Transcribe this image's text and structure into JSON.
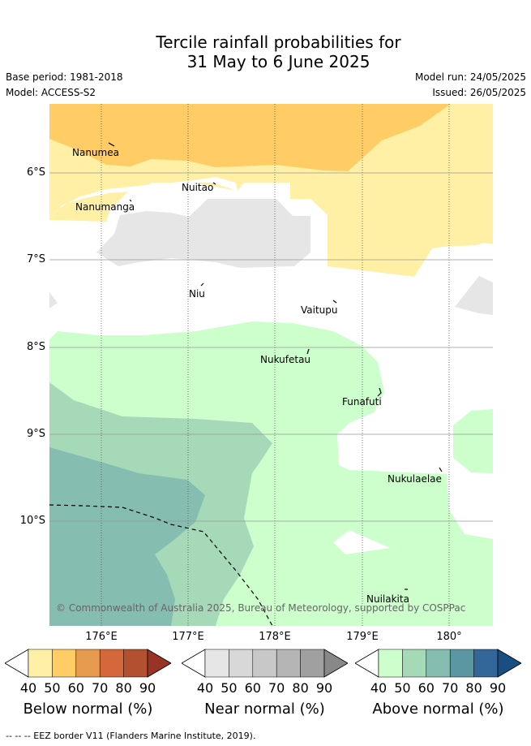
{
  "title": {
    "line1": "Tercile rainfall probabilities for",
    "line2": "31 May to 6 June 2025"
  },
  "meta": {
    "base_period": "Base period: 1981-2018",
    "model": "Model: ACCESS-S2",
    "model_run": "Model run: 24/05/2025",
    "issued": "Issued: 26/05/2025"
  },
  "map": {
    "lon_ticks": [
      "176°E",
      "177°E",
      "178°E",
      "179°E",
      "180°"
    ],
    "lat_ticks": [
      "6°S",
      "7°S",
      "8°S",
      "9°S",
      "10°S"
    ],
    "places": [
      "Nanumea",
      "Nuitao",
      "Nanumanga",
      "Niu",
      "Vaitupu",
      "Nukufetau",
      "Funafuti",
      "Nukulaelae",
      "Nuilakita"
    ],
    "copyright": "© Commonwealth of Australia 2025, Bureau of Meteorology, supported by COSPPac"
  },
  "colorbars": [
    {
      "title": "Below normal (%)",
      "ticks": [
        "40",
        "50",
        "60",
        "70",
        "80",
        "90"
      ],
      "colors": [
        "#ffffff",
        "#fff0a6",
        "#ffcc66",
        "#e69a4d",
        "#d4683a",
        "#b3502f",
        "#993326"
      ]
    },
    {
      "title": "Near normal (%)",
      "ticks": [
        "40",
        "50",
        "60",
        "70",
        "80",
        "90"
      ],
      "colors": [
        "#ffffff",
        "#e6e6e6",
        "#d8d8d8",
        "#c8c8c8",
        "#b5b5b5",
        "#a0a0a0",
        "#888888"
      ]
    },
    {
      "title": "Above normal (%)",
      "ticks": [
        "40",
        "50",
        "60",
        "70",
        "80",
        "90"
      ],
      "colors": [
        "#ffffff",
        "#ccffcc",
        "#a6d9b8",
        "#85bdb0",
        "#5a97a3",
        "#336699",
        "#1a4d80"
      ]
    }
  ],
  "footer": "--  --  -- EEZ border V11 (Flanders Marine Institute, 2019)."
}
